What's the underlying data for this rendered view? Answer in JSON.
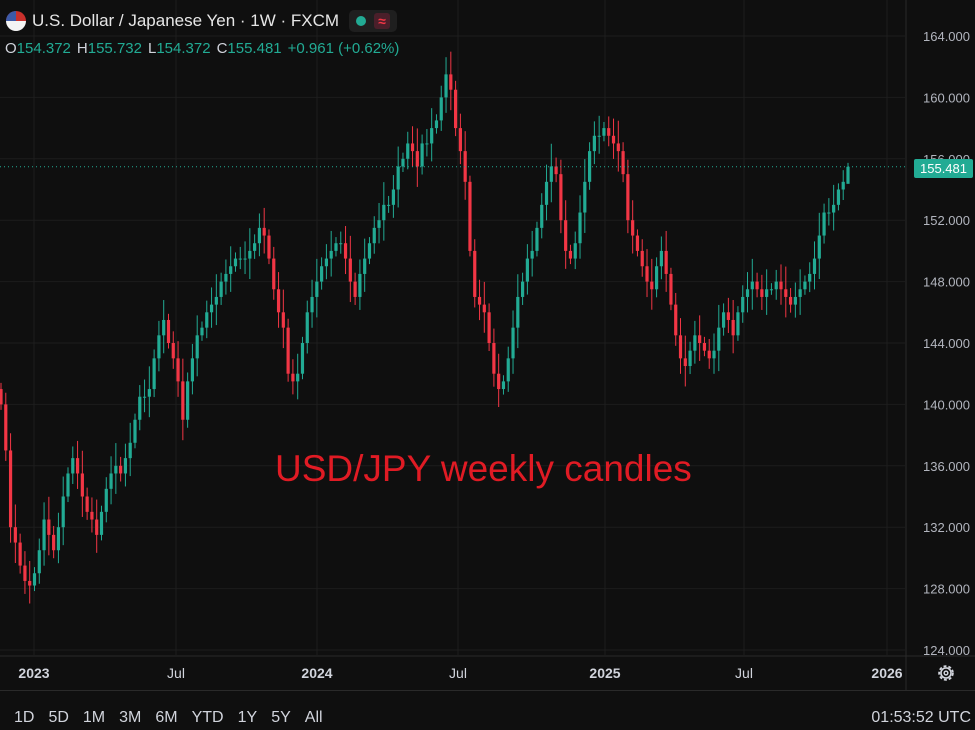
{
  "header": {
    "symbol_title": "U.S. Dollar / Japanese Yen · 1W · FXCM",
    "open_label": "O",
    "open": "154.372",
    "high_label": "H",
    "high": "155.732",
    "low_label": "L",
    "low": "154.372",
    "close_label": "C",
    "close": "155.481",
    "change": "+0.961 (+0.62%)"
  },
  "last_price": "155.481",
  "annotation": "USD/JPY weekly candles",
  "time_ranges": [
    "1D",
    "5D",
    "1M",
    "3M",
    "6M",
    "YTD",
    "1Y",
    "5Y",
    "All"
  ],
  "clock": "01:53:52 UTC",
  "icons": {
    "flag": "us-jp-flag-icon",
    "settings": "gear-icon",
    "wave": "indicator-icon"
  },
  "colors": {
    "up": "#22ab94",
    "down": "#f23645",
    "bg": "#0f0f0f",
    "grid": "#1f1f1f"
  },
  "chart_data": {
    "type": "candlestick",
    "title": "U.S. Dollar / Japanese Yen · 1W · FXCM",
    "y_ticks": [
      "164.000",
      "160.000",
      "156.000",
      "152.000",
      "148.000",
      "144.000",
      "140.000",
      "136.000",
      "132.000",
      "128.000",
      "124.000"
    ],
    "ylim": [
      124,
      164
    ],
    "x_ticks": [
      "2023",
      "Jul",
      "2024",
      "Jul",
      "2025",
      "Jul",
      "2026"
    ],
    "grid": true,
    "closes": [
      140,
      137,
      132,
      131,
      129.5,
      128.5,
      128.2,
      129,
      130.5,
      132.5,
      131.5,
      130.5,
      132,
      134,
      135.5,
      136.5,
      135.5,
      134,
      133,
      132.5,
      131.5,
      133,
      134.5,
      135.5,
      136,
      135.5,
      136.5,
      137.5,
      139,
      140.5,
      140.5,
      141,
      143,
      144.5,
      145.5,
      144,
      143,
      141.5,
      139,
      141.5,
      143,
      144.5,
      145,
      146,
      146.5,
      147,
      148,
      148.5,
      149,
      149.5,
      149.5,
      149.5,
      150,
      150.5,
      151.5,
      151,
      149.5,
      147.5,
      146,
      145,
      142,
      141.5,
      142,
      144,
      146,
      147,
      148,
      149,
      149.5,
      150,
      150.5,
      150.5,
      149.5,
      148,
      147,
      148.5,
      149.5,
      150.5,
      151.5,
      152,
      153,
      153,
      154,
      155.5,
      156,
      157,
      156.5,
      155.5,
      157,
      157,
      158,
      158.5,
      160,
      161.5,
      160.5,
      158,
      156.5,
      154.5,
      150,
      147,
      146.5,
      146,
      144,
      142,
      141,
      141.5,
      143,
      145,
      147,
      148,
      149.5,
      150,
      151.5,
      153,
      154.5,
      155.5,
      155,
      152,
      150,
      149.5,
      150.5,
      152.5,
      154.5,
      156.5,
      157.5,
      157.5,
      158,
      157.5,
      157,
      156.5,
      155,
      152,
      151,
      150,
      149,
      148,
      147.5,
      149,
      150,
      148.5,
      146.5,
      144.5,
      143,
      142.5,
      143.5,
      144.5,
      144,
      143.5,
      143,
      143.5,
      145,
      146,
      145.5,
      144.5,
      146,
      147,
      147.5,
      148,
      147.5,
      147,
      147.5,
      147.5,
      148,
      147.5,
      147,
      146.5,
      147,
      147.5,
      148,
      148.5,
      149.5,
      151,
      152.5,
      152.5,
      153,
      154,
      154.5,
      155.481
    ],
    "first_open": 141,
    "last_week": {
      "open": 154.372,
      "high": 155.732,
      "low": 154.372,
      "close": 155.481
    }
  }
}
